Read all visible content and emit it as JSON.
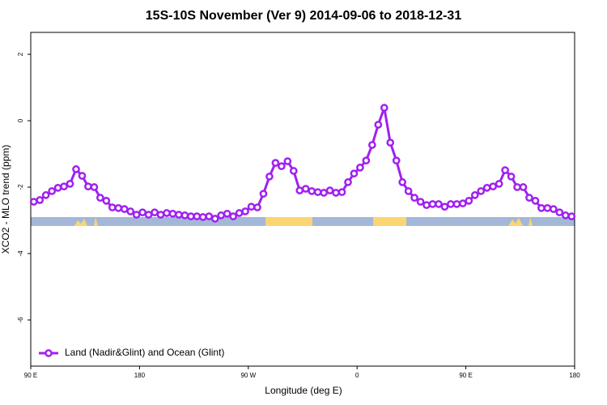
{
  "chart_data": {
    "type": "line",
    "title": "15S-10S November (Ver 9)   2014-09-06 to 2018-12-31",
    "x_label": "Longitude (deg E)",
    "y_label": "XCO2 - MLO trend (ppm)",
    "xlim": [
      90,
      540
    ],
    "xticks": [
      {
        "value": 90,
        "label": "90 E"
      },
      180,
      {
        "value": 270,
        "label": "90 W"
      },
      {
        "value": 360,
        "label": "0"
      },
      {
        "value": 450,
        "label": "90 E"
      },
      {
        "value": 540,
        "label": "180"
      }
    ],
    "ylim": [
      -7.39,
      2.66
    ],
    "yticks": [
      -6,
      -4,
      -2,
      0,
      2
    ],
    "legend_position": "lower left",
    "x": [
      92.5,
      97.5,
      102.5,
      107.5,
      112.5,
      117.5,
      122.5,
      127.5,
      132.5,
      137.5,
      142.5,
      147.5,
      152.5,
      157.5,
      162.5,
      167.5,
      172.5,
      177.5,
      182.5,
      187.5,
      192.5,
      197.5,
      202.5,
      207.5,
      212.5,
      217.5,
      222.5,
      227.5,
      232.5,
      237.5,
      242.5,
      247.5,
      252.5,
      257.5,
      262.5,
      267.5,
      272.5,
      277.5,
      282.5,
      287.5,
      292.5,
      297.5,
      302.5,
      307.5,
      312.5,
      317.5,
      322.5,
      327.5,
      332.5,
      337.5,
      342.5,
      347.5,
      352.5,
      357.5,
      362.5,
      367.5,
      372.5,
      377.5,
      382.5,
      387.5,
      392.5,
      397.5,
      402.5,
      407.5,
      412.5,
      417.5,
      422.5,
      427.5,
      432.5,
      437.5,
      442.5,
      447.5,
      452.5,
      457.5,
      462.5,
      467.5,
      472.5,
      477.5,
      482.5,
      487.5,
      492.5,
      497.5,
      502.5,
      507.5,
      512.5,
      517.5,
      522.5,
      527.5,
      532.5,
      537.5
    ],
    "series": [
      {
        "name": "Land (Nadir&Glint) and Ocean (Glint)",
        "color": "#a020f0",
        "values": [
          -2.44,
          -2.39,
          -2.24,
          -2.12,
          -2.02,
          -1.98,
          -1.9,
          -1.46,
          -1.66,
          -1.98,
          -2.0,
          -2.32,
          -2.41,
          -2.61,
          -2.63,
          -2.66,
          -2.73,
          -2.83,
          -2.76,
          -2.83,
          -2.76,
          -2.83,
          -2.78,
          -2.8,
          -2.83,
          -2.85,
          -2.88,
          -2.88,
          -2.9,
          -2.88,
          -2.95,
          -2.85,
          -2.8,
          -2.88,
          -2.78,
          -2.73,
          -2.59,
          -2.61,
          -2.2,
          -1.68,
          -1.27,
          -1.37,
          -1.22,
          -1.51,
          -2.1,
          -2.05,
          -2.12,
          -2.15,
          -2.17,
          -2.1,
          -2.17,
          -2.15,
          -1.85,
          -1.59,
          -1.41,
          -1.2,
          -0.73,
          -0.12,
          0.39,
          -0.66,
          -1.2,
          -1.85,
          -2.12,
          -2.32,
          -2.44,
          -2.54,
          -2.51,
          -2.51,
          -2.59,
          -2.51,
          -2.51,
          -2.49,
          -2.41,
          -2.24,
          -2.12,
          -2.02,
          -1.98,
          -1.9,
          -1.49,
          -1.68,
          -2.0,
          -2.0,
          -2.32,
          -2.41,
          -2.63,
          -2.63,
          -2.66,
          -2.76,
          -2.85,
          -2.88
        ]
      }
    ]
  }
}
